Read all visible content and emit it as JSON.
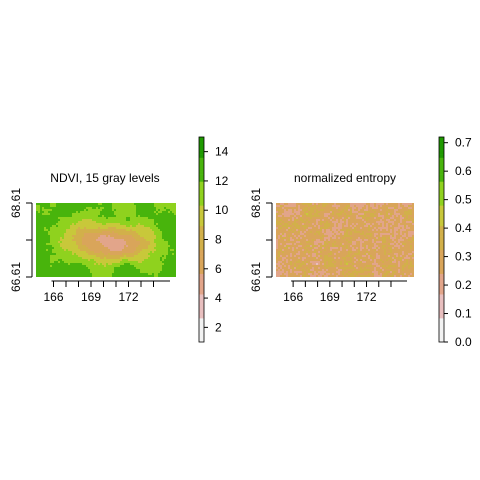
{
  "chart_data": [
    {
      "type": "heatmap",
      "title": "NDVI, 15 gray levels",
      "x_ticks": [
        166,
        169,
        172
      ],
      "y_ticks": [
        "66.61",
        "68.61"
      ],
      "xlim": [
        164.6,
        175.8
      ],
      "ylim": [
        66.61,
        68.61
      ],
      "legend": {
        "placement": "right",
        "range": [
          1,
          15
        ],
        "ticks": [
          2,
          4,
          6,
          8,
          10,
          12,
          14
        ]
      },
      "colors": [
        "#f2f2f2",
        "#e8bfbf",
        "#e2a58a",
        "#d9a55a",
        "#d2b04a",
        "#c8c83a",
        "#8fd21e",
        "#48b40c",
        "#1f9a00"
      ]
    },
    {
      "type": "heatmap",
      "title": "normalized entropy",
      "x_ticks": [
        166,
        169,
        172
      ],
      "y_ticks": [
        "66.61",
        "68.61"
      ],
      "xlim": [
        164.6,
        175.8
      ],
      "ylim": [
        66.61,
        68.61
      ],
      "legend": {
        "placement": "right",
        "range": [
          0.0,
          0.72
        ],
        "ticks": [
          "0.0",
          "0.1",
          "0.2",
          "0.3",
          "0.4",
          "0.5",
          "0.6",
          "0.7"
        ]
      },
      "colors": [
        "#f2f2f2",
        "#e8bfbf",
        "#e2a58a",
        "#d9a55a",
        "#d2b04a",
        "#c8c83a",
        "#8fd21e",
        "#48b40c",
        "#1f9a00"
      ]
    }
  ]
}
